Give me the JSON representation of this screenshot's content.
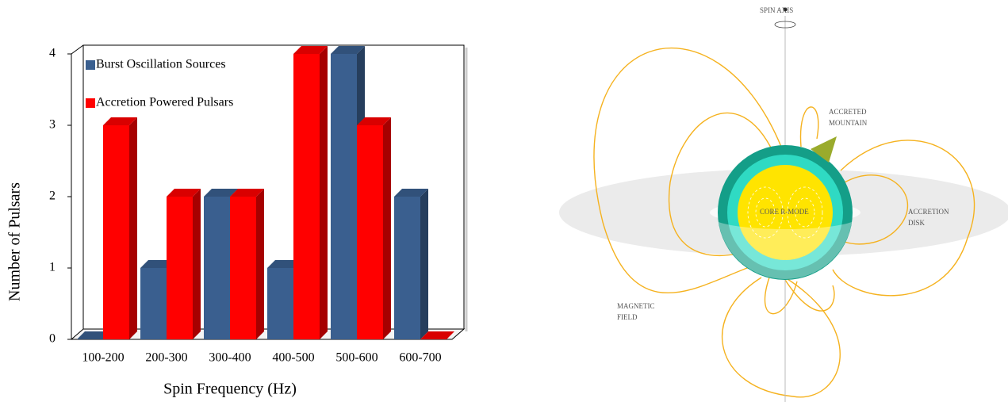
{
  "chart_data": {
    "type": "bar3d",
    "x_label": "Spin Frequency (Hz)",
    "y_label": "Number of Pulsars",
    "categories": [
      "100-200",
      "200-300",
      "300-400",
      "400-500",
      "500-600",
      "600-700"
    ],
    "series": [
      {
        "name": "Burst Oscillation Sources",
        "color": "#3a5f8f",
        "values": [
          0,
          1,
          2,
          1,
          4,
          2
        ]
      },
      {
        "name": "Accretion Powered Pulsars",
        "color": "#ff0000",
        "values": [
          3,
          2,
          2,
          4,
          3,
          0
        ]
      }
    ],
    "ylim": [
      0,
      4
    ],
    "yticks": [
      0,
      1,
      2,
      3,
      4
    ],
    "legend": "upper left"
  },
  "diagram": {
    "labels": [
      {
        "lines": [
          "SPIN AXIS"
        ]
      },
      {
        "lines": [
          "ACCRETED",
          "MOUNTAIN"
        ]
      },
      {
        "lines": [
          "CORE R-MODE"
        ]
      },
      {
        "lines": [
          "ACCRETION",
          "DISK"
        ]
      },
      {
        "lines": [
          "MAGNETIC",
          "FIELD"
        ]
      }
    ]
  }
}
